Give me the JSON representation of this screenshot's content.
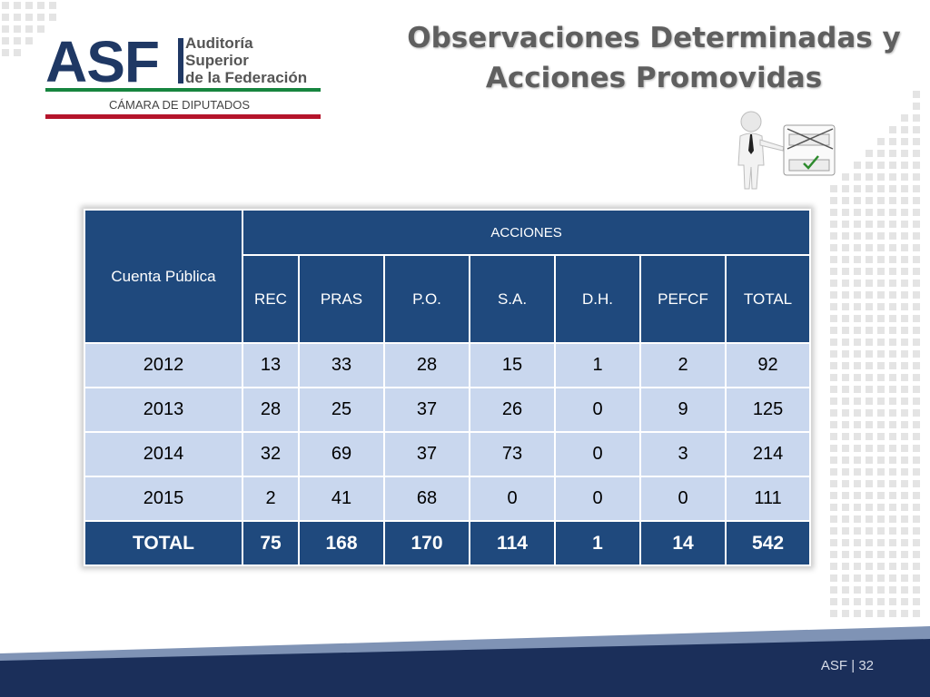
{
  "logo": {
    "acronym": "ASF",
    "line1": "Auditoría",
    "line2": "Superior",
    "line3": "de la Federación",
    "chamber": "CÁMARA DE DIPUTADOS"
  },
  "title": {
    "line1": "Observaciones Determinadas y",
    "line2": "Acciones Promovidas"
  },
  "table": {
    "row_header": "Cuenta Pública",
    "group_header": "ACCIONES",
    "columns": [
      "REC",
      "PRAS",
      "P.O.",
      "S.A.",
      "D.H.",
      "PEFCF",
      "TOTAL"
    ],
    "rows": [
      {
        "year": "2012",
        "values": [
          "13",
          "33",
          "28",
          "15",
          "1",
          "2",
          "92"
        ]
      },
      {
        "year": "2013",
        "values": [
          "28",
          "25",
          "37",
          "26",
          "0",
          "9",
          "125"
        ]
      },
      {
        "year": "2014",
        "values": [
          "32",
          "69",
          "37",
          "73",
          "0",
          "3",
          "214"
        ]
      },
      {
        "year": "2015",
        "values": [
          "2",
          "41",
          "68",
          "0",
          "0",
          "0",
          "111"
        ]
      }
    ],
    "total": {
      "label": "TOTAL",
      "values": [
        "75",
        "168",
        "170",
        "114",
        "1",
        "14",
        "542"
      ]
    }
  },
  "footer": {
    "label": "ASF",
    "separator": "|",
    "page": "32"
  },
  "colors": {
    "header_blue": "#1f497d",
    "row_light": "#c9d7ee",
    "green_stripe": "#17853f",
    "red_stripe": "#b5142b",
    "footer_blue": "#1b2f5a"
  },
  "icons": {
    "presenter": "presenter-figure-icon",
    "board": "choice-board-icon"
  }
}
